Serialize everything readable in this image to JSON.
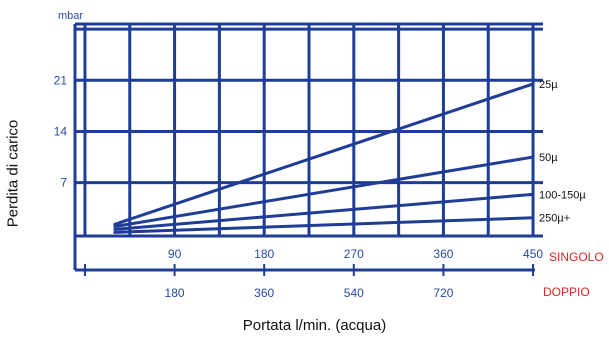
{
  "colors": {
    "line": "#1f3c96",
    "label_blue": "#2a4aa0",
    "red": "#d62828"
  },
  "chart_data": {
    "type": "line",
    "title": "",
    "xlabel": "Portata l/min. (acqua)",
    "ylabel": "Perdita di carico",
    "yunit": "mbar",
    "x": [
      30,
      450
    ],
    "series": [
      {
        "name": "25µ",
        "values": [
          1.3,
          20.5
        ]
      },
      {
        "name": "50µ",
        "values": [
          1.0,
          10.5
        ]
      },
      {
        "name": "100-150µ",
        "values": [
          0.6,
          5.4
        ]
      },
      {
        "name": "250µ+",
        "values": [
          0.2,
          2.2
        ]
      }
    ],
    "yticks": [
      "7",
      "14",
      "21"
    ],
    "ytick_values": [
      7,
      14,
      21
    ],
    "ylim": [
      -0.3,
      28.7
    ],
    "xlim": [
      -10,
      460
    ],
    "grid": true,
    "axes": [
      {
        "name": "SINGOLO",
        "ticks": [
          "90",
          "180",
          "270",
          "360",
          "450"
        ],
        "tick_values": [
          90,
          180,
          270,
          360,
          450
        ]
      },
      {
        "name": "DOPPIO",
        "ticks": [
          "180",
          "360",
          "540",
          "720"
        ],
        "tick_values": [
          180,
          360,
          540,
          720
        ],
        "range": [
          0,
          900
        ]
      }
    ]
  }
}
